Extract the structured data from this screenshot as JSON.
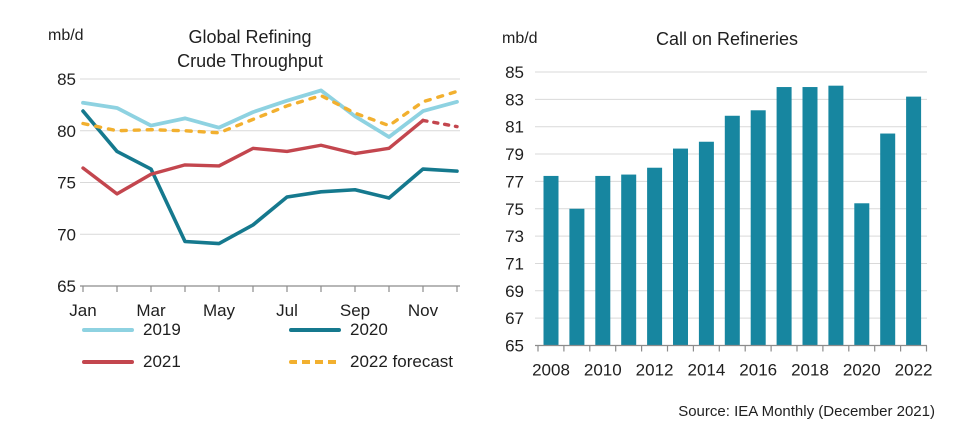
{
  "page": {
    "source_note": "Source: IEA Monthly (December 2021)"
  },
  "colors": {
    "background": "#ffffff",
    "text": "#1f1f1f",
    "grid": "#d9d9d9",
    "axis": "#8c8c8c"
  },
  "chart_data": [
    {
      "id": "global-refining-crude-throughput",
      "type": "line",
      "title": "Global Refining Crude Throughput",
      "title_lines": [
        "Global Refining",
        "Crude Throughput"
      ],
      "unit_label": "mb/d",
      "x": [
        "Jan",
        "Feb",
        "Mar",
        "Apr",
        "May",
        "Jun",
        "Jul",
        "Aug",
        "Sep",
        "Oct",
        "Nov",
        "Dec"
      ],
      "x_axis_labels": [
        "Jan",
        "Mar",
        "May",
        "Jul",
        "Sep",
        "Nov"
      ],
      "ylim": [
        65,
        85
      ],
      "yticks": [
        65,
        70,
        75,
        80,
        85
      ],
      "grid": true,
      "legend_position": "bottom",
      "series": [
        {
          "name": "2019",
          "color": "#8ed2e1",
          "dash": "solid",
          "width": 3.8,
          "values": [
            82.7,
            82.2,
            80.5,
            81.2,
            80.3,
            81.8,
            82.9,
            83.9,
            81.4,
            79.4,
            81.9,
            82.8
          ]
        },
        {
          "name": "2020",
          "color": "#15798e",
          "dash": "solid",
          "width": 3.6,
          "values": [
            81.9,
            78.0,
            76.3,
            69.3,
            69.1,
            70.9,
            73.6,
            74.1,
            74.3,
            73.5,
            76.3,
            76.1
          ]
        },
        {
          "name": "2021",
          "color": "#c3464e",
          "dash": "solid-then-dashed",
          "dash_from_index": 10,
          "width": 3.4,
          "values": [
            76.4,
            73.9,
            75.8,
            76.7,
            76.6,
            78.3,
            78.0,
            78.6,
            77.8,
            78.3,
            81.0,
            80.4
          ]
        },
        {
          "name": "2022 forecast",
          "color": "#f2b02f",
          "dash": "dashed",
          "width": 3.4,
          "values": [
            80.7,
            80.0,
            80.1,
            80.0,
            79.8,
            81.1,
            82.4,
            83.4,
            81.7,
            80.5,
            82.8,
            83.8
          ]
        }
      ]
    },
    {
      "id": "call-on-refineries",
      "type": "bar",
      "title": "Call on Refineries",
      "unit_label": "mb/d",
      "categories": [
        "2008",
        "2009",
        "2010",
        "2011",
        "2012",
        "2013",
        "2014",
        "2015",
        "2016",
        "2017",
        "2018",
        "2019",
        "2020",
        "2021",
        "2022"
      ],
      "values": [
        77.4,
        75.0,
        77.4,
        77.5,
        78.0,
        79.4,
        79.9,
        81.8,
        82.2,
        83.9,
        83.9,
        84.0,
        75.4,
        80.5,
        83.2
      ],
      "bar_color": "#1786a0",
      "x_axis_labels": [
        "2008",
        "2010",
        "2012",
        "2014",
        "2016",
        "2018",
        "2020",
        "2022"
      ],
      "ylim": [
        65,
        85
      ],
      "yticks": [
        65,
        67,
        69,
        71,
        73,
        75,
        77,
        79,
        81,
        83,
        85
      ],
      "grid": true,
      "legend_position": "none"
    }
  ]
}
